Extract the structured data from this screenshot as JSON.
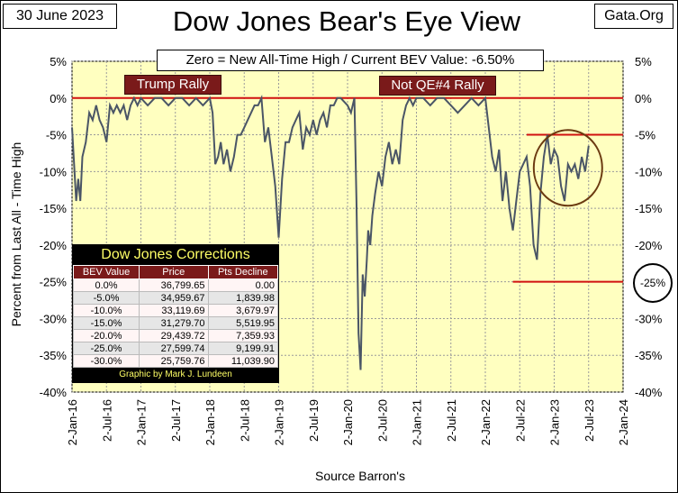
{
  "header": {
    "date": "30 June 2023",
    "site": "Gata.Org",
    "title": "Dow Jones Bear's Eye View",
    "subtitle": "Zero = New All-Time High / Current BEV Value:  -6.50%"
  },
  "annotations": {
    "trump_rally": "Trump Rally",
    "qe4_rally": "Not QE#4 Rally",
    "circled_level": "-25%"
  },
  "colors": {
    "plot_background": "#ffffc0",
    "series_line": "#4a5566",
    "reference_line": "#d01010",
    "label_background": "#7a1a1a",
    "circle": "#6b3a10"
  },
  "corrections_table": {
    "title": "Dow Jones Corrections",
    "columns": [
      "BEV Value",
      "Price",
      "Pts Decline"
    ],
    "rows": [
      [
        "0.0%",
        "36,799.65",
        "0.00"
      ],
      [
        "-5.0%",
        "34,959.67",
        "1,839.98"
      ],
      [
        "-10.0%",
        "33,119.69",
        "3,679.97"
      ],
      [
        "-15.0%",
        "31,279.70",
        "5,519.95"
      ],
      [
        "-20.0%",
        "29,439.72",
        "7,359.93"
      ],
      [
        "-25.0%",
        "27,599.74",
        "9,199.91"
      ],
      [
        "-30.0%",
        "25,759.76",
        "11,039.90"
      ]
    ],
    "credit": "Graphic by Mark J. Lundeen"
  },
  "chart_data": {
    "type": "line",
    "ylabel": "Percent from  Last All - Time  High",
    "xlabel": "Source Barron's",
    "ylim": [
      -40,
      5
    ],
    "yticks": [
      "5%",
      "0%",
      "-5%",
      "-10%",
      "-15%",
      "-20%",
      "-25%",
      "-30%",
      "-35%",
      "-40%"
    ],
    "ytick_values": [
      5,
      0,
      -5,
      -10,
      -15,
      -20,
      -25,
      -30,
      -35,
      -40
    ],
    "xticks": [
      "2-Jan-16",
      "2-Jul-16",
      "2-Jan-17",
      "2-Jul-17",
      "2-Jan-18",
      "2-Jul-18",
      "2-Jan-19",
      "2-Jul-19",
      "2-Jan-20",
      "2-Jul-20",
      "2-Jan-21",
      "2-Jul-21",
      "2-Jan-22",
      "2-Jul-22",
      "2-Jan-23",
      "2-Jul-23",
      "2-Jan-24"
    ],
    "xlim": [
      2016.0,
      2024.0
    ],
    "grid": true,
    "reference_lines": [
      {
        "y": 0,
        "x_from": 2016.0,
        "x_to": 2024.0
      },
      {
        "y": -5,
        "x_from": 2022.6,
        "x_to": 2024.0
      },
      {
        "y": -25,
        "x_from": 2022.4,
        "x_to": 2024.0
      }
    ],
    "highlight_circle": {
      "x_center": 2023.2,
      "y_center": -9.5
    },
    "series": [
      {
        "x": [
          2016.0,
          2016.03,
          2016.06,
          2016.09,
          2016.12,
          2016.15,
          2016.2,
          2016.25,
          2016.3,
          2016.35,
          2016.4,
          2016.45,
          2016.5,
          2016.55,
          2016.6,
          2016.65,
          2016.7,
          2016.75,
          2016.8,
          2016.85,
          2016.9,
          2016.95,
          2017.0,
          2017.1,
          2017.2,
          2017.3,
          2017.4,
          2017.5,
          2017.6,
          2017.7,
          2017.8,
          2017.9,
          2018.0,
          2018.04,
          2018.08,
          2018.12,
          2018.16,
          2018.2,
          2018.25,
          2018.3,
          2018.35,
          2018.4,
          2018.45,
          2018.5,
          2018.55,
          2018.6,
          2018.65,
          2018.7,
          2018.75,
          2018.8,
          2018.85,
          2018.9,
          2018.95,
          2019.0,
          2019.05,
          2019.1,
          2019.15,
          2019.2,
          2019.25,
          2019.3,
          2019.35,
          2019.4,
          2019.45,
          2019.5,
          2019.55,
          2019.6,
          2019.65,
          2019.7,
          2019.75,
          2019.8,
          2019.85,
          2019.9,
          2020.0,
          2020.05,
          2020.1,
          2020.13,
          2020.16,
          2020.19,
          2020.22,
          2020.25,
          2020.28,
          2020.3,
          2020.33,
          2020.36,
          2020.4,
          2020.45,
          2020.5,
          2020.55,
          2020.6,
          2020.65,
          2020.7,
          2020.75,
          2020.8,
          2020.85,
          2020.9,
          2020.95,
          2021.0,
          2021.1,
          2021.2,
          2021.3,
          2021.4,
          2021.5,
          2021.6,
          2021.7,
          2021.8,
          2021.9,
          2022.0,
          2022.05,
          2022.1,
          2022.15,
          2022.2,
          2022.25,
          2022.3,
          2022.35,
          2022.4,
          2022.45,
          2022.5,
          2022.55,
          2022.6,
          2022.65,
          2022.7,
          2022.75,
          2022.8,
          2022.85,
          2022.9,
          2022.95,
          2023.0,
          2023.05,
          2023.1,
          2023.15,
          2023.2,
          2023.25,
          2023.3,
          2023.35,
          2023.4,
          2023.45,
          2023.5
        ],
        "y": [
          -4,
          -9,
          -14,
          -11,
          -14,
          -8,
          -6,
          -2,
          -3,
          -1,
          -3,
          -4,
          -6,
          -1,
          -2,
          -1,
          -2,
          -1,
          -3,
          -1,
          0,
          -1,
          0,
          -1,
          0,
          0,
          -1,
          0,
          0,
          -1,
          0,
          -1,
          0,
          -2,
          -9,
          -8,
          -6,
          -9,
          -7,
          -10,
          -8,
          -5,
          -5,
          -4,
          -3,
          -2,
          -1,
          -1,
          0,
          -6,
          -4,
          -8,
          -12,
          -19,
          -11,
          -6,
          -6,
          -4,
          -3,
          -2,
          -7,
          -4,
          -5,
          -3,
          -5,
          -3,
          -2,
          -4,
          -1,
          -1,
          0,
          0,
          -1,
          -2,
          0,
          -14,
          -32,
          -37,
          -24,
          -27,
          -22,
          -18,
          -20,
          -16,
          -13,
          -10,
          -12,
          -8,
          -6,
          -9,
          -7,
          -9,
          -3,
          -1,
          0,
          -1,
          0,
          0,
          -1,
          0,
          0,
          -1,
          -2,
          -1,
          0,
          -1,
          0,
          -4,
          -8,
          -10,
          -7,
          -14,
          -10,
          -15,
          -18,
          -14,
          -10,
          -9,
          -8,
          -12,
          -20,
          -22,
          -13,
          -8,
          -5,
          -9,
          -7,
          -8,
          -12,
          -14,
          -9,
          -10,
          -9,
          -11,
          -8,
          -10,
          -6.5
        ]
      }
    ]
  }
}
